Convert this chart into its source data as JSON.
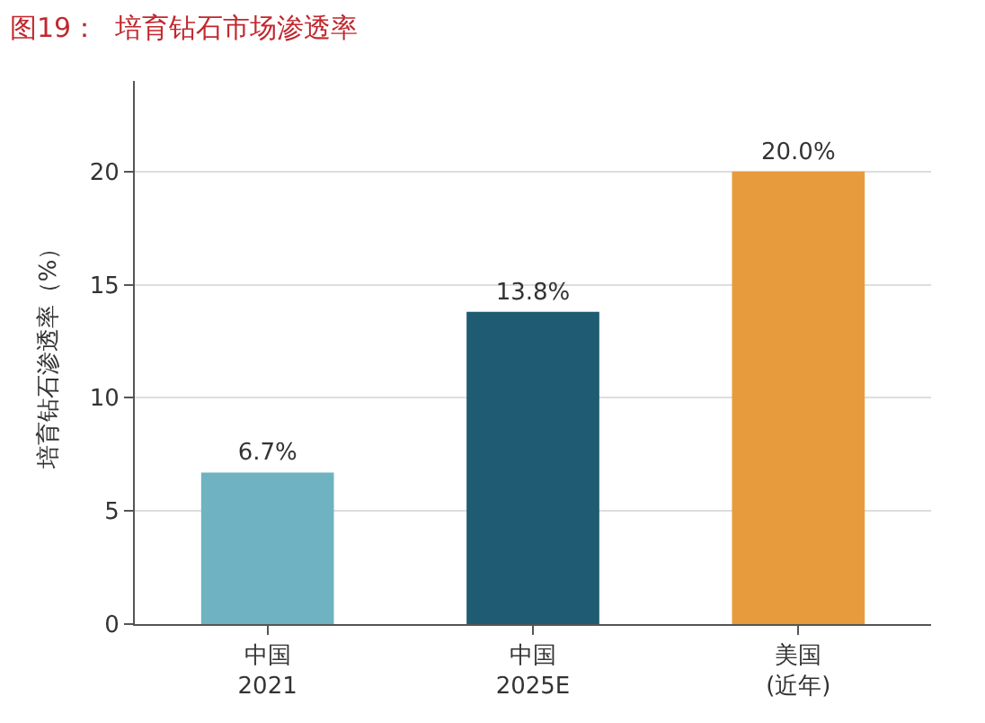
{
  "chart_data": {
    "type": "bar",
    "title": "图19：  培育钻石市场渗透率",
    "ylabel": "培育钻石渗透率（%）",
    "categories": [
      "中国\n2021",
      "中国\n2025E",
      "美国\n(近年)"
    ],
    "values": [
      6.7,
      13.8,
      20.0
    ],
    "colors": [
      "#6fb3c2",
      "#1f5b73",
      "#e89b3c"
    ],
    "value_labels": [
      "6.7%",
      "13.8%",
      "20.0%"
    ],
    "ylim": [
      0,
      24
    ],
    "yticks": [
      0,
      5,
      10,
      15,
      20
    ],
    "grid": "y",
    "legend": false
  }
}
